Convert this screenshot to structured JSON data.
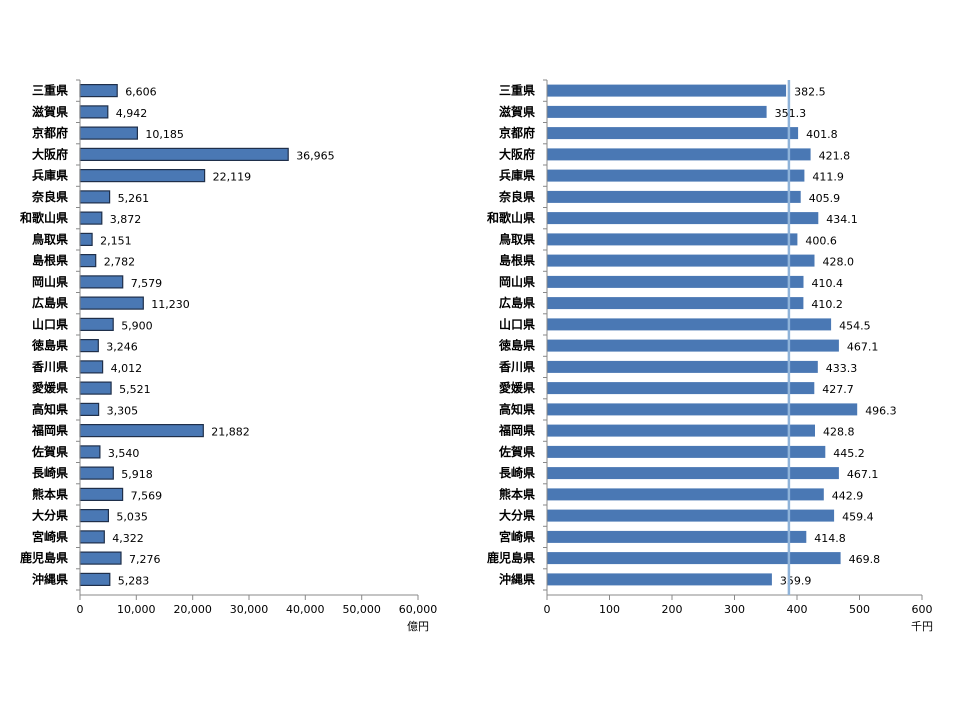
{
  "chart_data": [
    {
      "type": "bar",
      "orientation": "horizontal",
      "categories": [
        "三重県",
        "滋賀県",
        "京都府",
        "大阪府",
        "兵庫県",
        "奈良県",
        "和歌山県",
        "鳥取県",
        "島根県",
        "岡山県",
        "広島県",
        "山口県",
        "徳島県",
        "香川県",
        "愛媛県",
        "高知県",
        "福岡県",
        "佐賀県",
        "長崎県",
        "熊本県",
        "大分県",
        "宮崎県",
        "鹿児島県",
        "沖縄県"
      ],
      "values": [
        6606,
        4942,
        10185,
        36965,
        22119,
        5261,
        3872,
        2151,
        2782,
        7579,
        11230,
        5900,
        3246,
        4012,
        5521,
        3305,
        21882,
        3540,
        5918,
        7569,
        5035,
        4322,
        7276,
        5283
      ],
      "value_labels": [
        "6,606",
        "4,942",
        "10,185",
        "36,965",
        "22,119",
        "5,261",
        "3,872",
        "2,151",
        "2,782",
        "7,579",
        "11,230",
        "5,900",
        "3,246",
        "4,012",
        "5,521",
        "3,305",
        "21,882",
        "3,540",
        "5,918",
        "7,569",
        "5,035",
        "4,322",
        "7,276",
        "5,283"
      ],
      "xlim": [
        0,
        60000
      ],
      "ticks": [
        0,
        10000,
        20000,
        30000,
        40000,
        50000,
        60000
      ],
      "tick_labels": [
        "0",
        "10,000",
        "20,000",
        "30,000",
        "40,000",
        "50,000",
        "60,000"
      ],
      "unit": "億円",
      "bar_color": "#4a78b4",
      "bar_border": "#1f2f4a",
      "grid": false
    },
    {
      "type": "bar",
      "orientation": "horizontal",
      "categories": [
        "三重県",
        "滋賀県",
        "京都府",
        "大阪府",
        "兵庫県",
        "奈良県",
        "和歌山県",
        "鳥取県",
        "島根県",
        "岡山県",
        "広島県",
        "山口県",
        "徳島県",
        "香川県",
        "愛媛県",
        "高知県",
        "福岡県",
        "佐賀県",
        "長崎県",
        "熊本県",
        "大分県",
        "宮崎県",
        "鹿児島県",
        "沖縄県"
      ],
      "values": [
        382.5,
        351.3,
        401.8,
        421.8,
        411.9,
        405.9,
        434.1,
        400.6,
        428.0,
        410.4,
        410.2,
        454.5,
        467.1,
        433.3,
        427.7,
        496.3,
        428.8,
        445.2,
        467.1,
        442.9,
        459.4,
        414.8,
        469.8,
        359.9
      ],
      "value_labels": [
        "382.5",
        "351.3",
        "401.8",
        "421.8",
        "411.9",
        "405.9",
        "434.1",
        "400.6",
        "428.0",
        "410.4",
        "410.2",
        "454.5",
        "467.1",
        "433.3",
        "427.7",
        "496.3",
        "428.8",
        "445.2",
        "467.1",
        "442.9",
        "459.4",
        "414.8",
        "469.8",
        "359.9"
      ],
      "xlim": [
        0,
        600
      ],
      "ticks": [
        0,
        100,
        200,
        300,
        400,
        500,
        600
      ],
      "tick_labels": [
        "0",
        "100",
        "200",
        "300",
        "400",
        "500",
        "600"
      ],
      "unit": "千円",
      "reference_line": 387,
      "reference_color": "#8fb3d9",
      "bar_color": "#4a78b4",
      "grid": false
    }
  ]
}
